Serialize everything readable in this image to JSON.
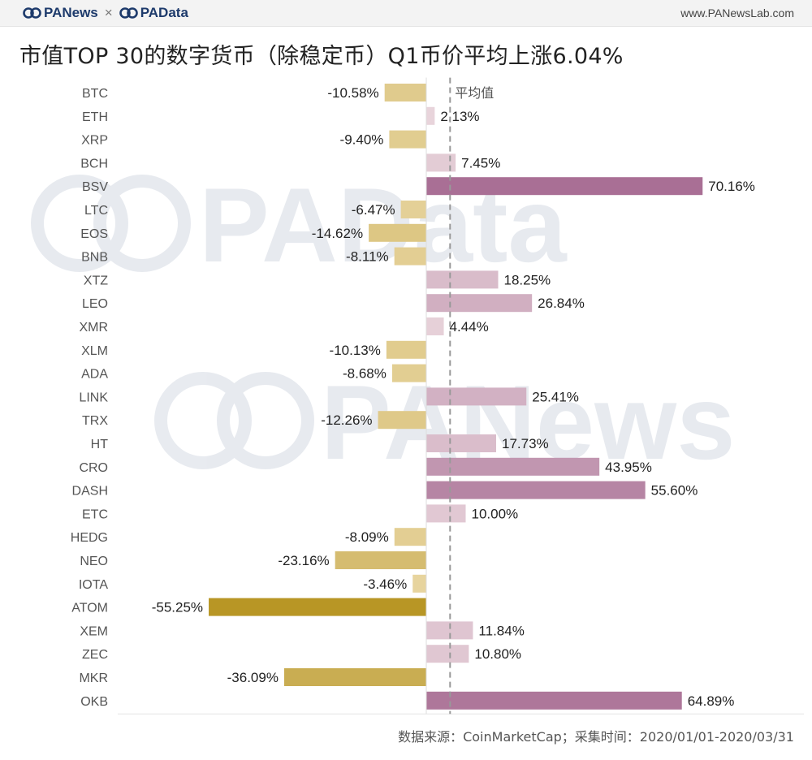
{
  "header": {
    "brand_left": "PANews",
    "brand_separator": "×",
    "brand_right": "PAData",
    "site_url": "www.PANewsLab.com"
  },
  "title": "市值TOP 30的数字货币（除稳定币）Q1币价平均上涨6.04%",
  "source": "数据来源：CoinMarketCap；采集时间：2020/01/01-2020/03/31",
  "watermarks": [
    "PAData",
    "PANews"
  ],
  "colors": {
    "negative_light": "#ead8a6",
    "negative_dark": "#b89625",
    "positive_light": "#ead7dd",
    "positive_dark": "#a96f95",
    "average_line": "#999999"
  },
  "chart_data": {
    "type": "bar",
    "orientation": "horizontal",
    "title": "市值TOP 30的数字货币（除稳定币）Q1币价平均上涨6.04%",
    "average_label": "平均值",
    "average_value": 6.04,
    "value_suffix": "%",
    "xlim": [
      -70,
      72
    ],
    "categories": [
      "BTC",
      "ETH",
      "XRP",
      "BCH",
      "BSV",
      "LTC",
      "EOS",
      "BNB",
      "XTZ",
      "LEO",
      "XMR",
      "XLM",
      "ADA",
      "LINK",
      "TRX",
      "HT",
      "CRO",
      "DASH",
      "ETC",
      "HEDG",
      "NEO",
      "IOTA",
      "ATOM",
      "XEM",
      "ZEC",
      "MKR",
      "OKB"
    ],
    "values": [
      -10.58,
      2.13,
      -9.4,
      7.45,
      70.16,
      -6.47,
      -14.62,
      -8.11,
      18.25,
      26.84,
      4.44,
      -10.13,
      -8.68,
      25.41,
      -12.26,
      17.73,
      43.95,
      55.6,
      10.0,
      -8.09,
      -23.16,
      -3.46,
      -55.25,
      11.84,
      10.8,
      -36.09,
      64.89
    ],
    "labels": [
      "-10.58%",
      "2.13%",
      "-9.40%",
      "7.45%",
      "70.16%",
      "-6.47%",
      "-14.62%",
      "-8.11%",
      "18.25%",
      "26.84%",
      "4.44%",
      "-10.13%",
      "-8.68%",
      "25.41%",
      "-12.26%",
      "17.73%",
      "43.95%",
      "55.60%",
      "10.00%",
      "-8.09%",
      "-23.16%",
      "-3.46%",
      "-55.25%",
      "11.84%",
      "10.80%",
      "-36.09%",
      "64.89%"
    ]
  }
}
